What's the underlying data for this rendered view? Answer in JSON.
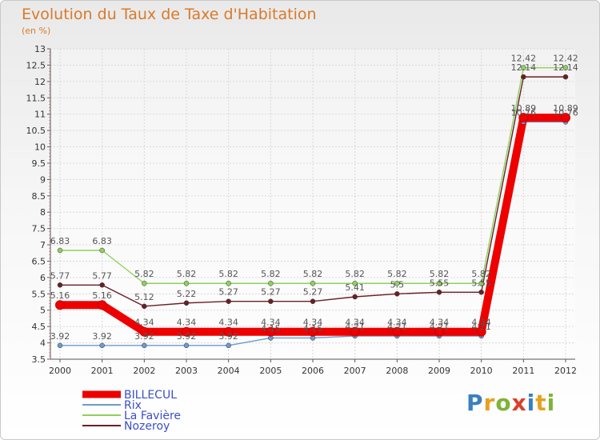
{
  "header": {
    "title": "Evolution du Taux de Taxe d'Habitation",
    "subtitle": "(en %)"
  },
  "brand": {
    "letters": [
      "P",
      "r",
      "o",
      "x",
      "i",
      "t",
      "i"
    ],
    "colors": [
      "#3a7fc0",
      "#e8a020",
      "#7fb23a",
      "#d9412b",
      "#3a7fc0",
      "#e8a020",
      "#7fb23a"
    ]
  },
  "chart_data": {
    "type": "line",
    "title": "Evolution du Taux de Taxe d'Habitation",
    "ylabel": "(en %)",
    "xlabel": "",
    "x": [
      "2000",
      "2001",
      "2002",
      "2003",
      "2004",
      "2005",
      "2006",
      "2007",
      "2008",
      "2009",
      "2010",
      "2011",
      "2012"
    ],
    "ylim": [
      3.5,
      13
    ],
    "yticks": [
      "3.5",
      "4",
      "4.5",
      "5",
      "5.5",
      "6",
      "6.5",
      "7",
      "7.5",
      "8",
      "8.5",
      "9",
      "9.5",
      "10",
      "10.5",
      "11",
      "11.5",
      "12",
      "12.5",
      "13"
    ],
    "grid": true,
    "legend_position": "bottom-left",
    "series": [
      {
        "name": "BILLECUL",
        "color": "#ee0000",
        "values": [
          5.16,
          5.16,
          4.34,
          4.34,
          4.34,
          4.34,
          4.34,
          4.34,
          4.34,
          4.34,
          4.34,
          10.89,
          10.89
        ],
        "labels": [
          "5.16",
          "5.16",
          "4.34",
          "4.34",
          "4.34",
          "4.34",
          "4.34",
          "4.34",
          "4.34",
          "4.34",
          "4.34",
          "10.89",
          "10.89"
        ]
      },
      {
        "name": "Rix",
        "color": "#6b9bd0",
        "values": [
          3.92,
          3.92,
          3.92,
          3.92,
          3.92,
          4.15,
          4.15,
          4.21,
          4.21,
          4.21,
          4.21,
          10.76,
          10.76
        ],
        "labels": [
          "3.92",
          "3.92",
          "3.92",
          "3.92",
          "3.92",
          "4.15",
          "4.15",
          "4.21",
          "4.21",
          "4.21",
          "4.21",
          "10.76",
          "10.76"
        ]
      },
      {
        "name": "La Favière",
        "color": "#8fd15a",
        "values": [
          6.83,
          6.83,
          5.82,
          5.82,
          5.82,
          5.82,
          5.82,
          5.82,
          5.82,
          5.82,
          5.82,
          12.42,
          12.42
        ],
        "labels": [
          "6.83",
          "6.83",
          "5.82",
          "5.82",
          "5.82",
          "5.82",
          "5.82",
          "5.82",
          "5.82",
          "5.82",
          "5.82",
          "12.42",
          "12.42"
        ]
      },
      {
        "name": "Nozeroy",
        "color": "#6a1f25",
        "values": [
          5.77,
          5.77,
          5.12,
          5.22,
          5.27,
          5.27,
          5.27,
          5.41,
          5.5,
          5.55,
          5.55,
          12.14,
          12.14
        ],
        "labels": [
          "5.77",
          "5.77",
          "5.12",
          "5.22",
          "5.27",
          "5.27",
          "5.27",
          "5.41",
          "5.5",
          "5.55",
          "5.55",
          "12.14",
          "12.14"
        ]
      }
    ]
  }
}
